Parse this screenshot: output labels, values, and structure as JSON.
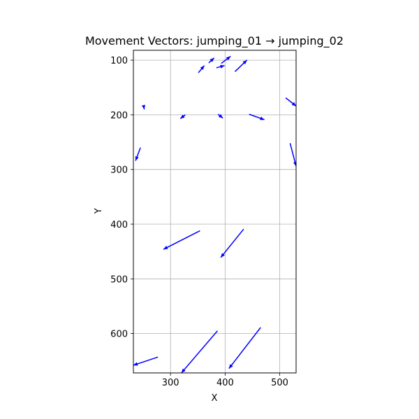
{
  "chart_data": {
    "type": "quiver",
    "title": "Movement Vectors: jumping_01 → jumping_02",
    "xlabel": "X",
    "ylabel": "Y",
    "xlim": [
      232,
      530
    ],
    "ylim": [
      672,
      82
    ],
    "y_inverted": true,
    "grid": true,
    "x_ticks": [
      300,
      400,
      500
    ],
    "y_ticks": [
      100,
      200,
      300,
      400,
      500,
      600
    ],
    "color": "#0000ff",
    "vectors": [
      {
        "x0": 351,
        "y0": 123,
        "x1": 362,
        "y1": 110
      },
      {
        "x0": 370,
        "y0": 105,
        "x1": 380,
        "y1": 96
      },
      {
        "x0": 384,
        "y0": 114,
        "x1": 399,
        "y1": 110
      },
      {
        "x0": 393,
        "y0": 106,
        "x1": 410,
        "y1": 93
      },
      {
        "x0": 418,
        "y0": 121,
        "x1": 440,
        "y1": 100
      },
      {
        "x0": 511,
        "y0": 169,
        "x1": 530,
        "y1": 184
      },
      {
        "x0": 251,
        "y0": 185,
        "x1": 252,
        "y1": 190
      },
      {
        "x0": 327,
        "y0": 200,
        "x1": 318,
        "y1": 207
      },
      {
        "x0": 387,
        "y0": 199,
        "x1": 396,
        "y1": 206
      },
      {
        "x0": 444,
        "y0": 199,
        "x1": 472,
        "y1": 209
      },
      {
        "x0": 519,
        "y0": 252,
        "x1": 530,
        "y1": 294
      },
      {
        "x0": 245,
        "y0": 260,
        "x1": 236,
        "y1": 284
      },
      {
        "x0": 354,
        "y0": 412,
        "x1": 287,
        "y1": 446
      },
      {
        "x0": 434,
        "y0": 409,
        "x1": 392,
        "y1": 461
      },
      {
        "x0": 386,
        "y0": 595,
        "x1": 320,
        "y1": 672
      },
      {
        "x0": 465,
        "y0": 589,
        "x1": 407,
        "y1": 664
      },
      {
        "x0": 277,
        "y0": 643,
        "x1": 232,
        "y1": 658
      }
    ]
  }
}
